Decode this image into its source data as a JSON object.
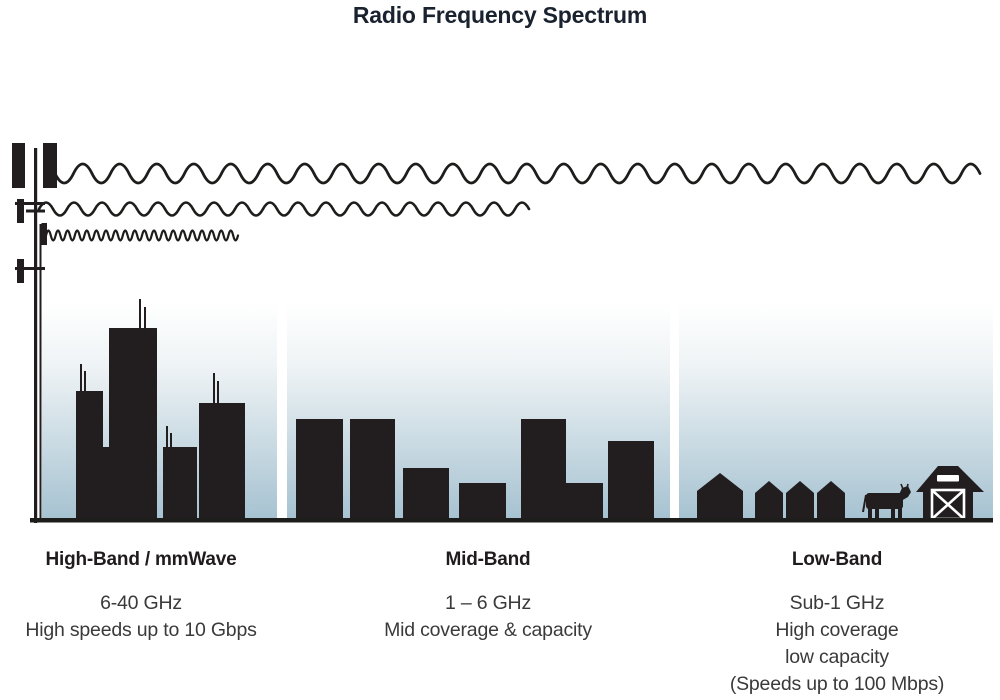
{
  "title": "Radio Frequency Spectrum",
  "bands": [
    {
      "name": "high-band",
      "label": "High-Band / mmWave",
      "lines": [
        "6-40 GHz",
        "High speeds up to 10 Gbps"
      ],
      "illustration": [
        "cell-tower-icon",
        "skyscraper-city-icon"
      ]
    },
    {
      "name": "mid-band",
      "label": "Mid-Band",
      "lines": [
        "1 – 6 GHz",
        "Mid coverage & capacity"
      ],
      "illustration": [
        "mid-rise-buildings-icon"
      ]
    },
    {
      "name": "low-band",
      "label": "Low-Band",
      "lines": [
        "Sub-1 GHz",
        "High coverage",
        "low capacity",
        "(Speeds up to 100 Mbps)"
      ],
      "illustration": [
        "houses-icon",
        "cow-icon",
        "barn-icon"
      ]
    }
  ],
  "waves": [
    {
      "name": "long-wavelength-wave",
      "band": "low-band",
      "reach": "full-width"
    },
    {
      "name": "medium-wavelength-wave",
      "band": "mid-band",
      "reach": "medium"
    },
    {
      "name": "short-wavelength-wave",
      "band": "high-band",
      "reach": "short"
    }
  ],
  "colors": {
    "ink": "#221e1f",
    "title_text": "#19222e",
    "body_text": "#3a3a3a",
    "sky_gradient_top": "#fdfefe",
    "sky_gradient_bottom": "#a6c2d1"
  }
}
